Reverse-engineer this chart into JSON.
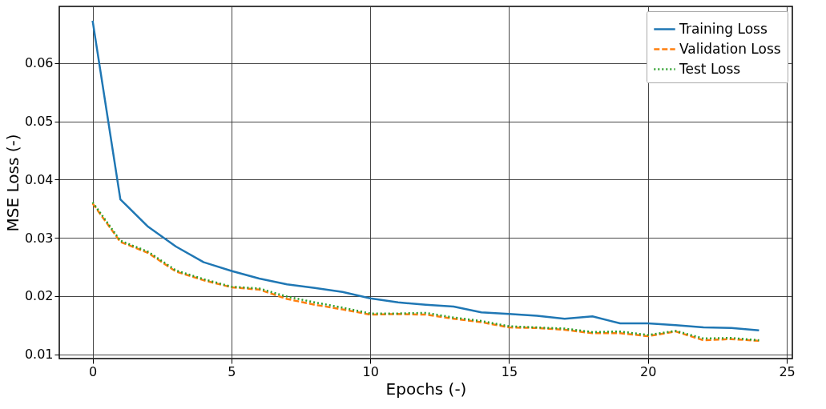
{
  "chart_data": {
    "type": "line",
    "xlabel": "Epochs (-)",
    "ylabel": "MSE Loss (-)",
    "x": [
      0,
      1,
      2,
      3,
      4,
      5,
      6,
      7,
      8,
      9,
      10,
      11,
      12,
      13,
      14,
      15,
      16,
      17,
      18,
      19,
      20,
      21,
      22,
      23,
      24
    ],
    "xlim": [
      -1.2,
      25.2
    ],
    "xticks": [
      0,
      5,
      10,
      15,
      20,
      25
    ],
    "ylim": [
      0.00925,
      0.06975
    ],
    "yticks": [
      0.01,
      0.02,
      0.03,
      0.04,
      0.05,
      0.06
    ],
    "grid": true,
    "legend": "top right",
    "series": [
      {
        "name": "Training Loss",
        "color": "#1f77b4",
        "line_style": "solid",
        "values": [
          0.0673,
          0.0366,
          0.0319,
          0.0285,
          0.0258,
          0.0243,
          0.023,
          0.022,
          0.0214,
          0.0207,
          0.0196,
          0.0189,
          0.0185,
          0.0182,
          0.0172,
          0.0169,
          0.0166,
          0.0161,
          0.0165,
          0.0153,
          0.0153,
          0.015,
          0.0146,
          0.0145,
          0.0141
        ]
      },
      {
        "name": "Validation Loss",
        "color": "#ff7f0e",
        "line_style": "dashed",
        "values": [
          0.0359,
          0.0293,
          0.0274,
          0.0242,
          0.0227,
          0.0215,
          0.0211,
          0.0195,
          0.0185,
          0.0177,
          0.0168,
          0.0169,
          0.0168,
          0.0161,
          0.0155,
          0.0146,
          0.0145,
          0.0142,
          0.0136,
          0.0136,
          0.0131,
          0.0139,
          0.0124,
          0.0126,
          0.0123
        ]
      },
      {
        "name": "Test Loss",
        "color": "#2ca02c",
        "line_style": "dotted",
        "values": [
          0.0361,
          0.0295,
          0.0276,
          0.0244,
          0.0229,
          0.0216,
          0.0213,
          0.0199,
          0.0189,
          0.018,
          0.017,
          0.017,
          0.0171,
          0.0163,
          0.0157,
          0.0148,
          0.0146,
          0.0144,
          0.0138,
          0.0139,
          0.0133,
          0.014,
          0.0127,
          0.0128,
          0.0124
        ]
      }
    ]
  }
}
